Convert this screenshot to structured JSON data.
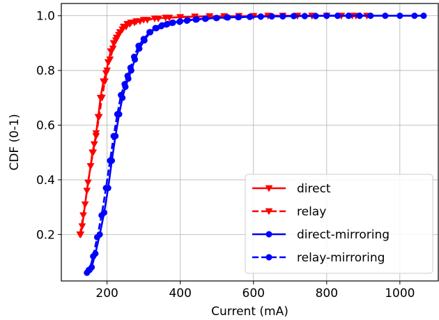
{
  "chart_data": {
    "type": "line",
    "xlabel": "Current (mA)",
    "ylabel": "CDF (0-1)",
    "xlim": [
      75,
      1105
    ],
    "ylim": [
      0.03,
      1.045
    ],
    "xticks": [
      200,
      400,
      600,
      800,
      1000
    ],
    "yticks": [
      0.2,
      0.4,
      0.6,
      0.8,
      1.0
    ],
    "xtick_labels": [
      "200",
      "400",
      "600",
      "800",
      "1000"
    ],
    "ytick_labels": [
      "0.2",
      "0.4",
      "0.6",
      "0.8",
      "1.0"
    ],
    "grid": true,
    "legend_position": "lower-right",
    "series": [
      {
        "name": "direct",
        "color": "#ff0000",
        "line_style": "solid",
        "marker": "triangle-down",
        "x": [
          128,
          132,
          140,
          148,
          155,
          160,
          165,
          170,
          176,
          182,
          190,
          197,
          203,
          210,
          218,
          226,
          235,
          245,
          255,
          265,
          280,
          300,
          330,
          360,
          400,
          440,
          480,
          520,
          560,
          600,
          640,
          680,
          720,
          760,
          800,
          840,
          880
        ],
        "y": [
          0.2,
          0.23,
          0.31,
          0.39,
          0.45,
          0.5,
          0.53,
          0.57,
          0.63,
          0.7,
          0.76,
          0.79,
          0.83,
          0.87,
          0.9,
          0.92,
          0.94,
          0.96,
          0.97,
          0.975,
          0.98,
          0.985,
          0.99,
          0.993,
          0.995,
          0.997,
          0.998,
          0.998,
          0.999,
          0.999,
          1.0,
          1.0,
          1.0,
          1.0,
          1.0,
          1.0,
          1.0
        ]
      },
      {
        "name": "relay",
        "color": "#ff0000",
        "line_style": "dashed",
        "marker": "triangle-down",
        "x": [
          126,
          135,
          145,
          155,
          162,
          170,
          178,
          186,
          194,
          200,
          208,
          216,
          224,
          232,
          242,
          252,
          262,
          275,
          290,
          310,
          340,
          370,
          400,
          440,
          480,
          520,
          560,
          600,
          640,
          680,
          720,
          760,
          800,
          840,
          870,
          910
        ],
        "y": [
          0.2,
          0.27,
          0.36,
          0.45,
          0.5,
          0.56,
          0.63,
          0.7,
          0.76,
          0.8,
          0.84,
          0.88,
          0.91,
          0.93,
          0.95,
          0.96,
          0.97,
          0.975,
          0.98,
          0.985,
          0.99,
          0.993,
          0.995,
          0.997,
          0.998,
          0.998,
          0.999,
          0.999,
          1.0,
          1.0,
          1.0,
          1.0,
          1.0,
          1.0,
          1.0,
          1.0
        ]
      },
      {
        "name": "direct-mirroring",
        "color": "#0000ff",
        "line_style": "solid",
        "marker": "circle",
        "x": [
          150,
          158,
          168,
          180,
          192,
          203,
          213,
          223,
          233,
          242,
          250,
          258,
          266,
          276,
          288,
          302,
          318,
          335,
          350,
          365,
          380,
          400,
          420,
          445,
          470,
          500,
          530,
          560,
          590,
          620,
          650,
          680,
          710,
          740,
          770,
          800,
          830,
          860,
          890,
          920,
          960,
          1000,
          1040,
          1065
        ],
        "y": [
          0.07,
          0.08,
          0.13,
          0.2,
          0.28,
          0.37,
          0.47,
          0.56,
          0.64,
          0.7,
          0.74,
          0.77,
          0.8,
          0.84,
          0.88,
          0.91,
          0.94,
          0.955,
          0.965,
          0.97,
          0.975,
          0.98,
          0.984,
          0.987,
          0.99,
          0.992,
          0.994,
          0.995,
          0.996,
          0.997,
          0.998,
          0.998,
          0.999,
          0.999,
          0.999,
          1.0,
          1.0,
          1.0,
          1.0,
          1.0,
          1.0,
          1.0,
          1.0,
          1.0
        ],
        "markers_at": [
          150,
          203,
          222,
          240,
          262,
          302,
          338,
          360,
          420,
          500,
          560,
          620,
          680,
          740,
          800,
          860,
          920,
          1000,
          1065
        ]
      },
      {
        "name": "relay-mirroring",
        "color": "#0000ff",
        "line_style": "dashed",
        "marker": "circle",
        "x": [
          145,
          152,
          162,
          173,
          185,
          197,
          208,
          218,
          228,
          238,
          248,
          256,
          264,
          274,
          286,
          300,
          316,
          332,
          348,
          362,
          378,
          398,
          418,
          442,
          468,
          498,
          528,
          558,
          590,
          620,
          650,
          680,
          710,
          740,
          770,
          800,
          830,
          860,
          890
        ],
        "y": [
          0.06,
          0.07,
          0.12,
          0.19,
          0.27,
          0.37,
          0.47,
          0.56,
          0.64,
          0.71,
          0.75,
          0.78,
          0.81,
          0.85,
          0.89,
          0.915,
          0.94,
          0.955,
          0.962,
          0.968,
          0.974,
          0.978,
          0.982,
          0.986,
          0.989,
          0.992,
          0.994,
          0.995,
          0.996,
          0.997,
          0.998,
          0.998,
          0.999,
          0.999,
          0.999,
          1.0,
          1.0,
          1.0,
          1.0
        ]
      }
    ]
  }
}
